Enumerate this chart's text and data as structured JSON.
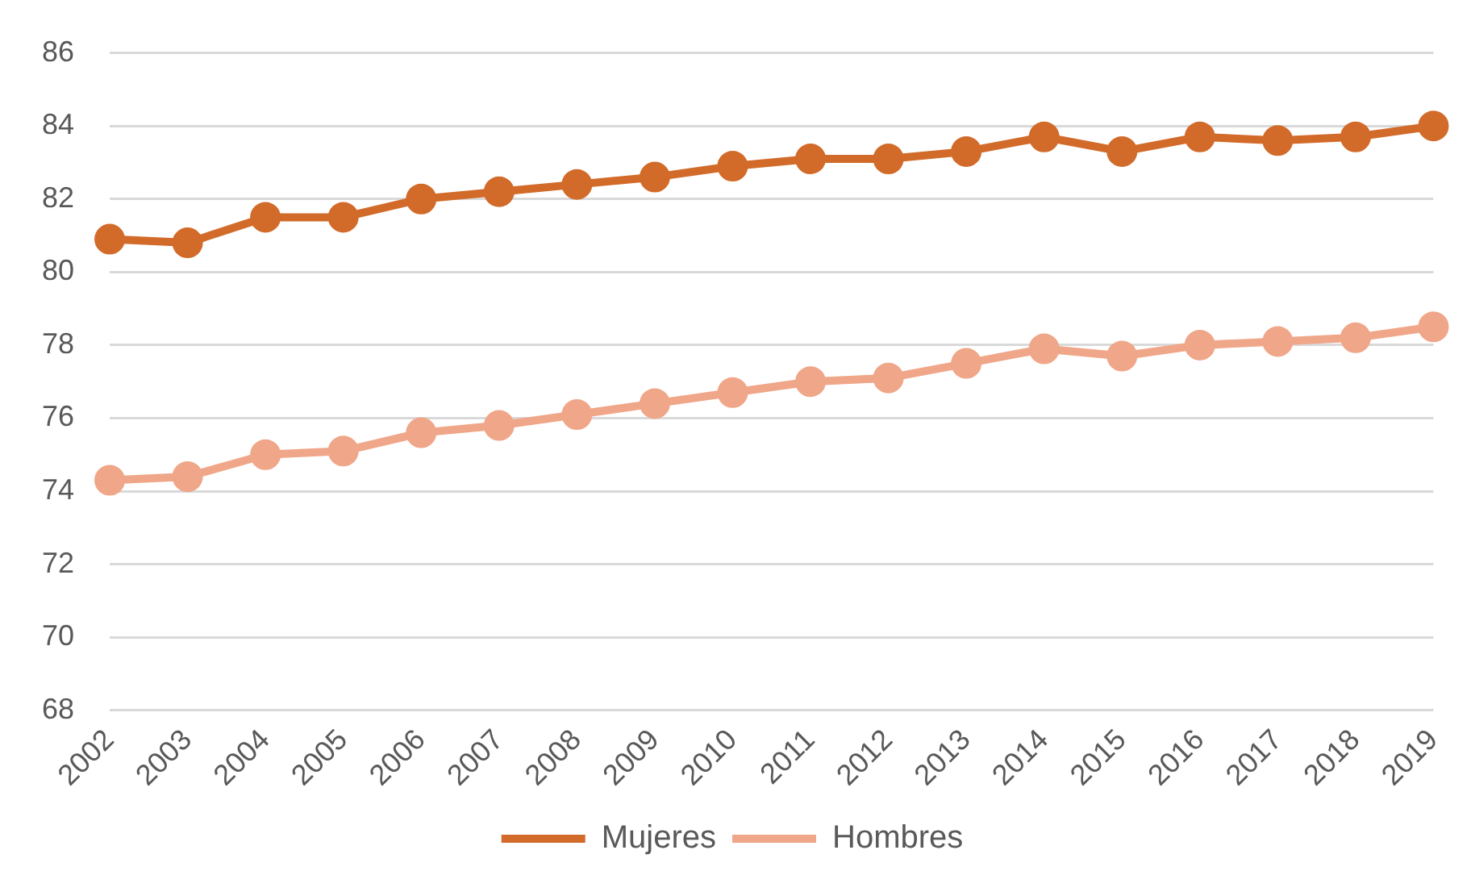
{
  "chart_data": {
    "type": "line",
    "categories": [
      "2002",
      "2003",
      "2004",
      "2005",
      "2006",
      "2007",
      "2008",
      "2009",
      "2010",
      "2011",
      "2012",
      "2013",
      "2014",
      "2015",
      "2016",
      "2017",
      "2018",
      "2019"
    ],
    "series": [
      {
        "name": "Mujeres",
        "color": "#d26b2a",
        "values": [
          80.9,
          80.8,
          81.5,
          81.5,
          82.0,
          82.2,
          82.4,
          82.6,
          82.9,
          83.1,
          83.1,
          83.3,
          83.7,
          83.3,
          83.7,
          83.6,
          83.7,
          84.0
        ]
      },
      {
        "name": "Hombres",
        "color": "#f0a688",
        "values": [
          74.3,
          74.4,
          75.0,
          75.1,
          75.6,
          75.8,
          76.1,
          76.4,
          76.7,
          77.0,
          77.1,
          77.5,
          77.9,
          77.7,
          78.0,
          78.1,
          78.2,
          78.5
        ]
      }
    ],
    "ylim": [
      68,
      86
    ],
    "yticks": [
      68,
      70,
      72,
      74,
      76,
      78,
      80,
      82,
      84,
      86
    ],
    "grid": "y",
    "legend": "bottom",
    "marker": "circle",
    "line_style": "solid"
  }
}
